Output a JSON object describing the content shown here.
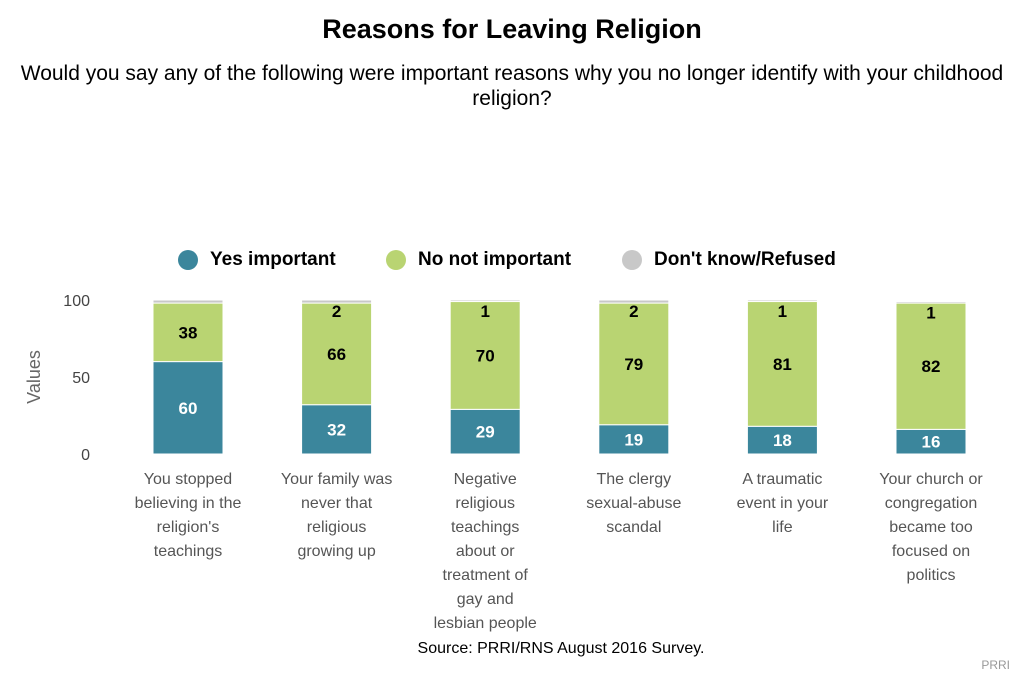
{
  "title": "Reasons for Leaving Religion",
  "subtitle": "Would you say any of the following were important reasons why you no longer identify with your childhood religion?",
  "source": "Source: PRRI/RNS August 2016 Survey.",
  "credit": "PRRI",
  "chart_data": {
    "type": "bar",
    "stacked": true,
    "title": "Reasons for Leaving Religion",
    "subtitle": "Would you say any of the following were important reasons why you no longer identify with your childhood religion?",
    "ylabel": "Values",
    "xlabel": "",
    "ylim": [
      0,
      100
    ],
    "yticks": [
      0,
      50,
      100
    ],
    "grid": false,
    "legend_position": "top",
    "categories": [
      "You stopped believing in the religion's teachings",
      "Your family was never that religious growing up",
      "Negative religious teachings about or treatment of gay and lesbian people",
      "The clergy sexual-abuse scandal",
      "A traumatic event in your life",
      "Your church or congregation became too focused on politics"
    ],
    "category_label_lines": [
      [
        "You stopped",
        "believing in the",
        "religion's",
        "teachings"
      ],
      [
        "Your family was",
        "never that",
        "religious",
        "growing up"
      ],
      [
        "Negative",
        "religious",
        "teachings",
        "about or",
        "treatment of",
        "gay and",
        "lesbian people"
      ],
      [
        "The clergy",
        "sexual-abuse",
        "scandal"
      ],
      [
        "A traumatic",
        "event in your",
        "life"
      ],
      [
        "Your church or",
        "congregation",
        "became too",
        "focused on",
        "politics"
      ]
    ],
    "series": [
      {
        "name": "Yes important",
        "color": "#3b869c",
        "values": [
          60,
          32,
          29,
          19,
          18,
          16
        ]
      },
      {
        "name": "No not important",
        "color": "#b9d472",
        "values": [
          38,
          66,
          70,
          79,
          81,
          82
        ]
      },
      {
        "name": "Don't know/Refused",
        "color": "#c8c8c8",
        "values": [
          2,
          2,
          1,
          2,
          1,
          1
        ]
      }
    ],
    "data_labels": [
      [
        "60",
        "32",
        "29",
        "19",
        "18",
        "16"
      ],
      [
        "38",
        "66",
        "70",
        "79",
        "81",
        "82"
      ],
      [
        "",
        "2",
        "1",
        "2",
        "1",
        "1"
      ]
    ]
  }
}
